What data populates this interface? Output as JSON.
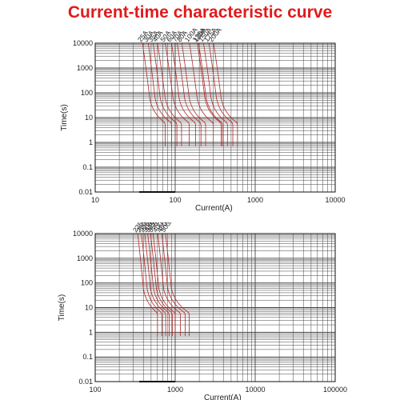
{
  "title": "Current-time characteristic curve",
  "chart_data": [
    {
      "type": "line",
      "xscale": "log",
      "yscale": "log",
      "xlim": [
        10,
        10000
      ],
      "ylim": [
        0.01,
        10000
      ],
      "xlabel": "Current(A)",
      "ylabel": "Time(s)",
      "xticks": [
        "10",
        "100",
        "1000",
        "10000"
      ],
      "yticks": [
        "0.01",
        "0.1",
        "1",
        "10",
        "100",
        "1000",
        "10000"
      ],
      "grid": true,
      "colors": {
        "curve": "#b22a2a",
        "grid": "#444444",
        "axis": "#111111"
      },
      "series": [
        {
          "name": "25A",
          "start": 39,
          "end": 48,
          "tail": 75
        },
        {
          "name": "30A",
          "start": 46,
          "end": 56,
          "tail": 90
        },
        {
          "name": "35A",
          "start": 53,
          "end": 65,
          "tail": 105
        },
        {
          "name": "40A",
          "start": 60,
          "end": 75,
          "tail": 120
        },
        {
          "name": "50A",
          "start": 75,
          "end": 94,
          "tail": 150
        },
        {
          "name": "60A",
          "start": 90,
          "end": 112,
          "tail": 180
        },
        {
          "name": "70A",
          "start": 106,
          "end": 131,
          "tail": 210
        },
        {
          "name": "80A",
          "start": 121,
          "end": 150,
          "tail": 240
        },
        {
          "name": "100A",
          "start": 151,
          "end": 188,
          "tail": 300
        },
        {
          "name": "125A",
          "start": 189,
          "end": 235,
          "tail": 375
        },
        {
          "name": "130A",
          "start": 196,
          "end": 244,
          "tail": 390
        },
        {
          "name": "150A",
          "start": 226,
          "end": 281,
          "tail": 450
        },
        {
          "name": "175A",
          "start": 264,
          "end": 328,
          "tail": 525
        },
        {
          "name": "200A",
          "start": 302,
          "end": 375,
          "tail": 600
        }
      ]
    },
    {
      "type": "line",
      "xscale": "log",
      "yscale": "log",
      "xlim": [
        100,
        100000
      ],
      "ylim": [
        0.01,
        10000
      ],
      "xlabel": "Current(A)",
      "ylabel": "Time(s)",
      "xticks": [
        "100",
        "1000",
        "10000",
        "100000"
      ],
      "yticks": [
        "0.01",
        "0.1",
        "1",
        "10",
        "100",
        "1000",
        "10000"
      ],
      "grid": true,
      "colors": {
        "curve": "#b22a2a",
        "grid": "#444444",
        "axis": "#111111"
      },
      "series": [
        {
          "name": "225A",
          "start": 340,
          "end": 400,
          "tail": 600
        },
        {
          "name": "250A",
          "start": 378,
          "end": 445,
          "tail": 680
        },
        {
          "name": "275A",
          "start": 416,
          "end": 490,
          "tail": 760
        },
        {
          "name": "300A",
          "start": 453,
          "end": 535,
          "tail": 840
        },
        {
          "name": "325A",
          "start": 491,
          "end": 580,
          "tail": 920
        },
        {
          "name": "350A",
          "start": 529,
          "end": 625,
          "tail": 1000
        },
        {
          "name": "400A",
          "start": 605,
          "end": 715,
          "tail": 1160
        },
        {
          "name": "450A",
          "start": 680,
          "end": 805,
          "tail": 1330
        },
        {
          "name": "500A",
          "start": 756,
          "end": 895,
          "tail": 1500
        }
      ]
    }
  ]
}
